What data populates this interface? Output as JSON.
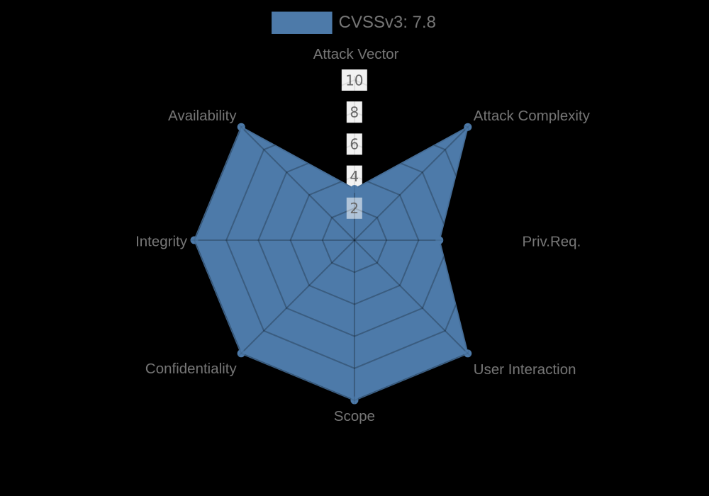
{
  "chart_data": {
    "type": "radar",
    "title": "",
    "legend": [
      {
        "label": "CVSSv3: 7.8",
        "swatch_color": "#4d7aa9"
      }
    ],
    "axes": [
      "Attack Vector",
      "Attack Complexity",
      "Priv.Req.",
      "User Interaction",
      "Scope",
      "Confidentiality",
      "Integrity",
      "Availability"
    ],
    "series": [
      {
        "name": "CVSSv3: 7.8",
        "values": [
          3.2,
          10,
          5.3,
          10,
          10,
          10,
          10,
          10
        ]
      }
    ],
    "radial_ticks": [
      2,
      4,
      6,
      8,
      10
    ],
    "rlim": [
      0,
      10
    ],
    "grid": true,
    "legend_position": "top-center",
    "colors": {
      "background": "#000000",
      "fill": "#4d7aa9",
      "stroke": "#4d7aa9",
      "grid_line": "#000000",
      "text": "#777777",
      "tick_text": "#696969",
      "tick_box": "#ffffff"
    }
  }
}
